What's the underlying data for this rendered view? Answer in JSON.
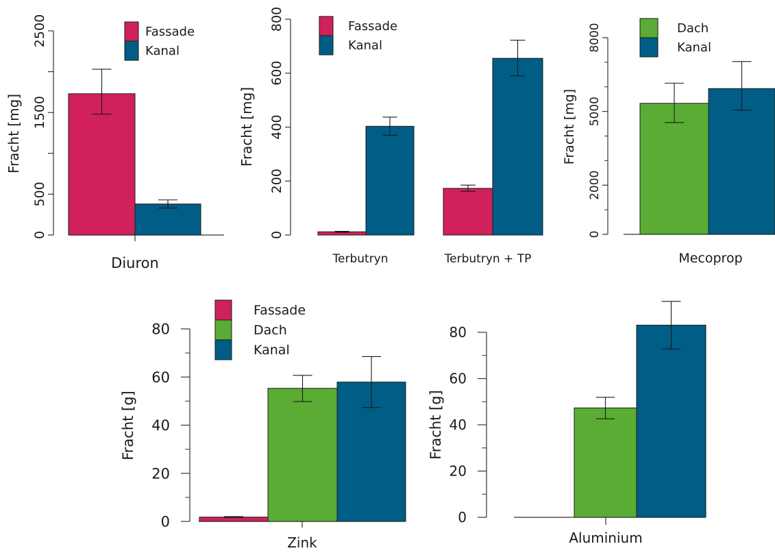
{
  "colors": {
    "Fassade": "#d0215b",
    "Dach": "#5aac34",
    "Kanal": "#005d85",
    "axis": "#333333"
  },
  "chart_data": [
    {
      "id": "diuron",
      "type": "bar",
      "ylabel": "Fracht [mg]",
      "ylim": [
        0,
        2500
      ],
      "ticks": [
        0,
        500,
        1000,
        1500,
        2000,
        2500
      ],
      "tick_labels": [
        "0",
        "500",
        "",
        "1500",
        "",
        "2500"
      ],
      "ytick_rotated": true,
      "legend": [
        "Fassade",
        "Kanal"
      ],
      "legend_position": "top-right",
      "categories": [
        "Diuron"
      ],
      "series": [
        {
          "name": "Fassade",
          "values": [
            1730
          ],
          "err_low": [
            1480
          ],
          "err_high": [
            2030
          ]
        },
        {
          "name": "Kanal",
          "values": [
            380
          ],
          "err_low": [
            330
          ],
          "err_high": [
            430
          ]
        }
      ]
    },
    {
      "id": "terbutryn",
      "type": "bar",
      "ylabel": "Fracht [mg]",
      "ylim": [
        0,
        800
      ],
      "ticks": [
        0,
        200,
        400,
        600,
        800
      ],
      "tick_labels": [
        "0",
        "200",
        "400",
        "600",
        "800"
      ],
      "ytick_rotated": true,
      "legend": [
        "Fassade",
        "Kanal"
      ],
      "legend_position": "top-left",
      "categories": [
        "Terbutryn",
        "Terbutryn + TP"
      ],
      "series": [
        {
          "name": "Fassade",
          "values": [
            12,
            173
          ],
          "err_low": [
            10,
            162
          ],
          "err_high": [
            14,
            185
          ]
        },
        {
          "name": "Kanal",
          "values": [
            403,
            655
          ],
          "err_low": [
            370,
            590
          ],
          "err_high": [
            437,
            722
          ]
        }
      ]
    },
    {
      "id": "mecoprop",
      "type": "bar",
      "ylabel": "Fracht [mg]",
      "ylim": [
        0,
        8000
      ],
      "ticks": [
        0,
        2000,
        5000,
        8000
      ],
      "tick_labels": [
        "0",
        "2000",
        "5000",
        "8000"
      ],
      "minor_ticks": [
        1000,
        3000,
        4000,
        6000,
        7000
      ],
      "ytick_rotated": true,
      "legend": [
        "Dach",
        "Kanal"
      ],
      "legend_position": "top-left",
      "categories": [
        "Mecoprop"
      ],
      "series": [
        {
          "name": "Dach",
          "values": [
            5330
          ],
          "err_low": [
            4550
          ],
          "err_high": [
            6150
          ]
        },
        {
          "name": "Kanal",
          "values": [
            5930
          ],
          "err_low": [
            5050
          ],
          "err_high": [
            7030
          ]
        }
      ]
    },
    {
      "id": "zink",
      "type": "bar",
      "ylabel": "Fracht [g]",
      "ylim": [
        0,
        80
      ],
      "ticks": [
        0,
        20,
        40,
        60,
        80
      ],
      "tick_labels": [
        "0",
        "20",
        "40",
        "60",
        "80"
      ],
      "minor_ticks": [
        10,
        30,
        50,
        70
      ],
      "ytick_rotated": false,
      "legend": [
        "Fassade",
        "Dach",
        "Kanal"
      ],
      "legend_position": "top-left",
      "categories": [
        "Zink"
      ],
      "series": [
        {
          "name": "Fassade",
          "values": [
            1.8
          ],
          "err_low": [
            1.6
          ],
          "err_high": [
            2.0
          ]
        },
        {
          "name": "Dach",
          "values": [
            55.3
          ],
          "err_low": [
            49.8
          ],
          "err_high": [
            60.7
          ]
        },
        {
          "name": "Kanal",
          "values": [
            57.9
          ],
          "err_low": [
            47.3
          ],
          "err_high": [
            68.5
          ]
        }
      ]
    },
    {
      "id": "aluminium",
      "type": "bar",
      "ylabel": "Fracht [g]",
      "ylim": [
        0,
        80
      ],
      "ticks": [
        0,
        20,
        40,
        60,
        80
      ],
      "tick_labels": [
        "0",
        "20",
        "40",
        "60",
        "80"
      ],
      "minor_ticks": [
        10,
        30,
        50,
        70
      ],
      "ytick_rotated": false,
      "legend": [],
      "categories": [
        "Aluminium"
      ],
      "series": [
        {
          "name": "Fassade",
          "values": [
            0
          ]
        },
        {
          "name": "Dach",
          "values": [
            47.3
          ],
          "err_low": [
            42.6
          ],
          "err_high": [
            51.9
          ]
        },
        {
          "name": "Kanal",
          "values": [
            83.1
          ],
          "err_low": [
            72.8
          ],
          "err_high": [
            93.4
          ]
        }
      ]
    }
  ]
}
